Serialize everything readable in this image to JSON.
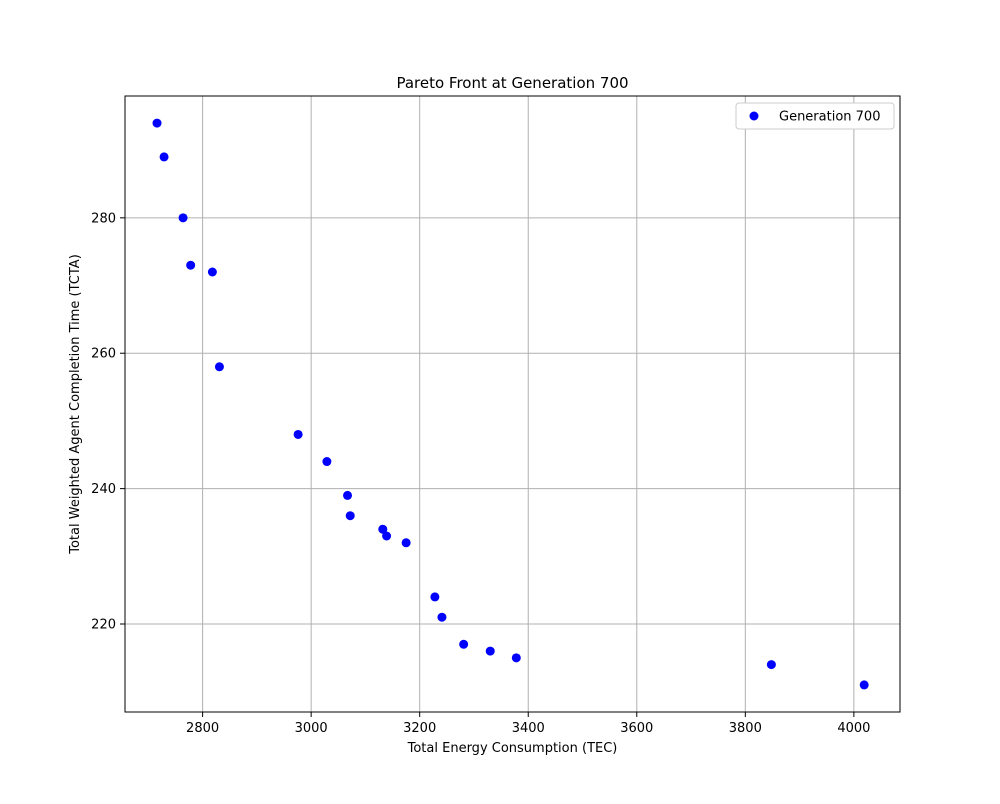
{
  "chart_data": {
    "type": "scatter",
    "title": "Pareto Front at Generation 700",
    "xlabel": "Total Energy Consumption (TEC)",
    "ylabel": "Total Weighted Agent Completion Time (TCTA)",
    "xlim": [
      2657,
      4085
    ],
    "ylim": [
      207,
      298
    ],
    "x_ticks": [
      2800,
      3000,
      3200,
      3400,
      3600,
      3800,
      4000
    ],
    "y_ticks": [
      220,
      240,
      260,
      280
    ],
    "grid": true,
    "legend_position": "top-right",
    "series": [
      {
        "name": "Generation 700",
        "color": "#0000ff",
        "marker": "circle",
        "points": [
          {
            "x": 2716,
            "y": 294
          },
          {
            "x": 2729,
            "y": 289
          },
          {
            "x": 2764,
            "y": 280
          },
          {
            "x": 2778,
            "y": 273
          },
          {
            "x": 2818,
            "y": 272
          },
          {
            "x": 2831,
            "y": 258
          },
          {
            "x": 2976,
            "y": 248
          },
          {
            "x": 3029,
            "y": 244
          },
          {
            "x": 3067,
            "y": 239
          },
          {
            "x": 3072,
            "y": 236
          },
          {
            "x": 3132,
            "y": 234
          },
          {
            "x": 3139,
            "y": 233
          },
          {
            "x": 3175,
            "y": 232
          },
          {
            "x": 3228,
            "y": 224
          },
          {
            "x": 3241,
            "y": 221
          },
          {
            "x": 3281,
            "y": 217
          },
          {
            "x": 3330,
            "y": 216
          },
          {
            "x": 3378,
            "y": 215
          },
          {
            "x": 3848,
            "y": 214
          },
          {
            "x": 4019,
            "y": 211
          }
        ]
      }
    ]
  }
}
